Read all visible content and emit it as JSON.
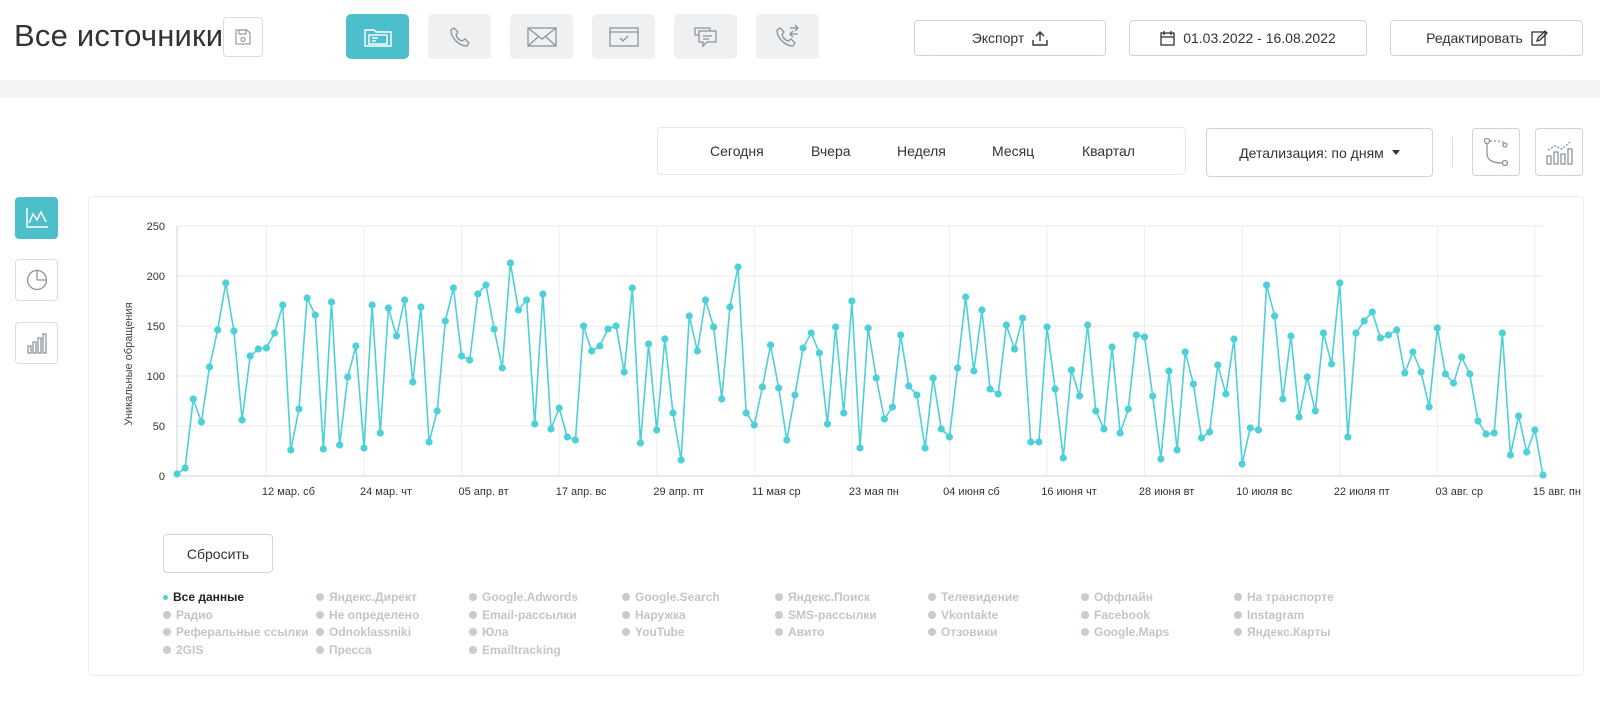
{
  "header": {
    "title": "Все источники",
    "export_label": "Экспорт",
    "date_range": "01.03.2022 - 16.08.2022",
    "edit_label": "Редактировать",
    "source_buttons": [
      {
        "icon": "folder-icon",
        "active": true
      },
      {
        "icon": "phone-icon",
        "active": false
      },
      {
        "icon": "mail-icon",
        "active": false
      },
      {
        "icon": "form-icon",
        "active": false
      },
      {
        "icon": "chat-icon",
        "active": false
      },
      {
        "icon": "callback-icon",
        "active": false
      }
    ]
  },
  "periods": [
    "Сегодня",
    "Вчера",
    "Неделя",
    "Месяц",
    "Квартал"
  ],
  "detail_dropdown": "Детализация: по дням",
  "reset_label": "Сбросить",
  "colors": {
    "accent": "#4cbfca",
    "line": "#4dd0d8"
  },
  "legend": [
    {
      "label": "Все данные",
      "active": true
    },
    {
      "label": "Яндекс.Директ",
      "active": false
    },
    {
      "label": "Google.Adwords",
      "active": false
    },
    {
      "label": "Google.Search",
      "active": false
    },
    {
      "label": "Яндекс.Поиск",
      "active": false
    },
    {
      "label": "Телевидение",
      "active": false
    },
    {
      "label": "Оффлайн",
      "active": false
    },
    {
      "label": "На транспорте",
      "active": false
    },
    {
      "label": "Радио",
      "active": false
    },
    {
      "label": "Не определено",
      "active": false
    },
    {
      "label": "Email-рассылки",
      "active": false
    },
    {
      "label": "Наружка",
      "active": false
    },
    {
      "label": "SMS-рассылки",
      "active": false
    },
    {
      "label": "Vkontakte",
      "active": false
    },
    {
      "label": "Facebook",
      "active": false
    },
    {
      "label": "Instagram",
      "active": false
    },
    {
      "label": "Реферальные ссылки",
      "active": false
    },
    {
      "label": "Odnoklassniki",
      "active": false
    },
    {
      "label": "Юла",
      "active": false
    },
    {
      "label": "YouTube",
      "active": false
    },
    {
      "label": "Авито",
      "active": false
    },
    {
      "label": "Отзовики",
      "active": false
    },
    {
      "label": "Google.Maps",
      "active": false
    },
    {
      "label": "Яндекс.Карты",
      "active": false
    },
    {
      "label": "2GIS",
      "active": false
    },
    {
      "label": "Пресса",
      "active": false
    },
    {
      "label": "Emailtracking",
      "active": false
    }
  ],
  "chart_data": {
    "type": "line",
    "ylabel": "Уникальные обращения",
    "ylim": [
      0,
      250
    ],
    "yticks": [
      0,
      50,
      100,
      150,
      200,
      250
    ],
    "grid": true,
    "legend": "none",
    "x_start": "2022-03-01",
    "x_end": "2022-08-16",
    "xticks": [
      "12 мар. сб",
      "24 мар. чт",
      "05 апр. вт",
      "17 апр. вс",
      "29 апр. пт",
      "11 мая ср",
      "23 мая пн",
      "04 июня сб",
      "16 июня чт",
      "28 июня вт",
      "10 июля вс",
      "22 июля пт",
      "03 авг. ср",
      "15 авг. пн"
    ],
    "series": [
      {
        "values": [
          2,
          8,
          77,
          54,
          109,
          146,
          193,
          145,
          56,
          120,
          127,
          128,
          143,
          171,
          26,
          67,
          178,
          161,
          27,
          174,
          31,
          99,
          130,
          28,
          171,
          43,
          168,
          140,
          176,
          94,
          169,
          34,
          65,
          155,
          188,
          120,
          116,
          182,
          191,
          147,
          108,
          213,
          166,
          176,
          52,
          182,
          47,
          68,
          39,
          36,
          150,
          125,
          130,
          147,
          150,
          104,
          188,
          33,
          132,
          46,
          137,
          63,
          16,
          160,
          125,
          176,
          149,
          77,
          169,
          209,
          63,
          51,
          89,
          131,
          88,
          36,
          81,
          128,
          143,
          123,
          52,
          149,
          63,
          175,
          28,
          148,
          98,
          57,
          69,
          141,
          90,
          81,
          28,
          98,
          47,
          39,
          108,
          179,
          105,
          166,
          87,
          82,
          151,
          127,
          158,
          34,
          34,
          149,
          87,
          18,
          106,
          80,
          151,
          65,
          47,
          129,
          43,
          67,
          141,
          139,
          80,
          17,
          105,
          26,
          124,
          92,
          38,
          44,
          111,
          82,
          137,
          12,
          48,
          46,
          191,
          160,
          77,
          140,
          59,
          99,
          65,
          143,
          112,
          193,
          39,
          143,
          155,
          164,
          138,
          141,
          146,
          103,
          124,
          104,
          69,
          148,
          102,
          93,
          119,
          102,
          55,
          42,
          43,
          143,
          21,
          60,
          24,
          46,
          1
        ]
      }
    ]
  }
}
